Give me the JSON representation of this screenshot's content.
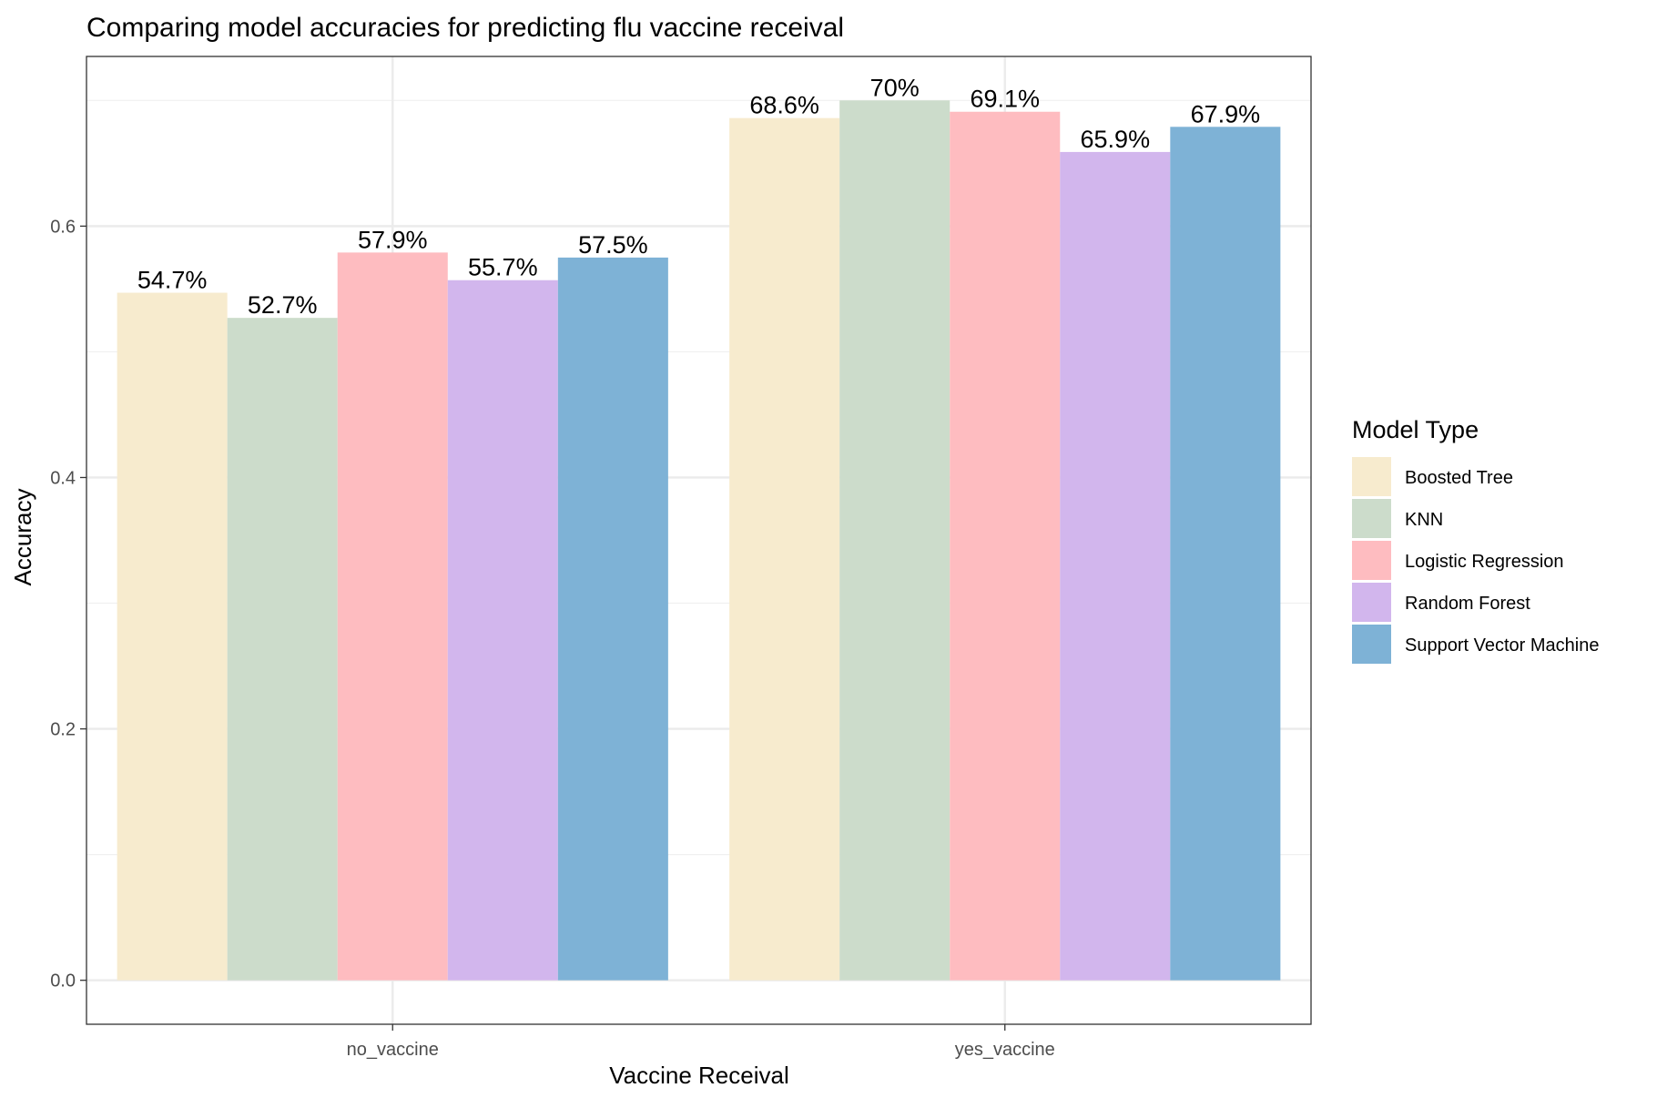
{
  "chart_data": {
    "type": "bar",
    "title": "Comparing model accuracies for predicting flu vaccine receival",
    "xlabel": "Vaccine Receival",
    "ylabel": "Accuracy",
    "ylim": [
      -0.035,
      0.735
    ],
    "yticks": [
      "0.0",
      "0.2",
      "0.4",
      "0.6"
    ],
    "ytick_values": [
      0.0,
      0.2,
      0.4,
      0.6
    ],
    "categories": [
      "no_vaccine",
      "yes_vaccine"
    ],
    "legend_title": "Model Type",
    "legend_position": "right",
    "grid": true,
    "series": [
      {
        "name": "Boosted Tree",
        "color": "#F7EBCE",
        "values": [
          0.547,
          0.686
        ],
        "labels": [
          "54.7%",
          "68.6%"
        ]
      },
      {
        "name": "KNN",
        "color": "#CCDCCB",
        "values": [
          0.527,
          0.7
        ],
        "labels": [
          "52.7%",
          "70%"
        ]
      },
      {
        "name": "Logistic Regression",
        "color": "#FEBCC0",
        "values": [
          0.579,
          0.691
        ],
        "labels": [
          "57.9%",
          "69.1%"
        ]
      },
      {
        "name": "Random Forest",
        "color": "#D2B6ED",
        "values": [
          0.557,
          0.659
        ],
        "labels": [
          "55.7%",
          "65.9%"
        ]
      },
      {
        "name": "Support Vector Machine",
        "color": "#7EB2D6",
        "values": [
          0.575,
          0.679
        ],
        "labels": [
          "57.5%",
          "67.9%"
        ]
      }
    ]
  }
}
